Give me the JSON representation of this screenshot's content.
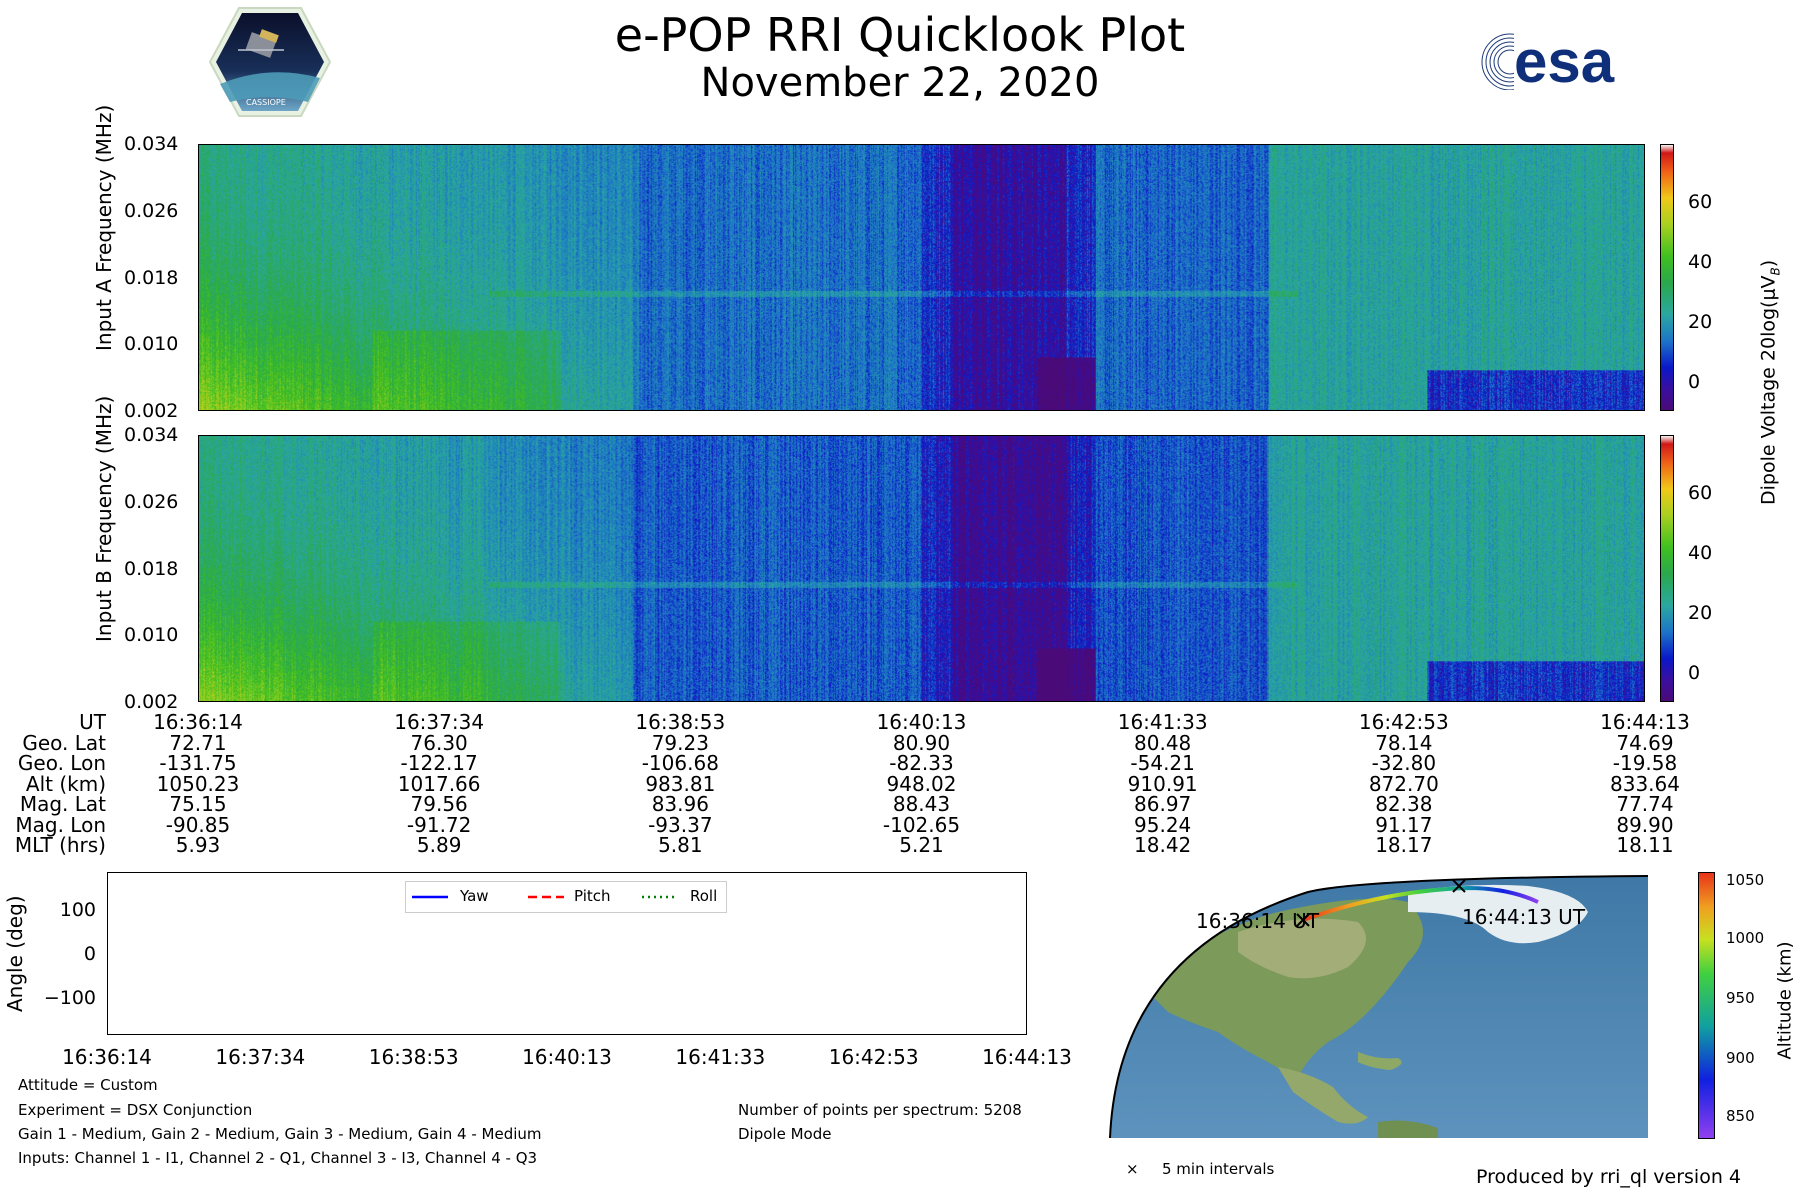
{
  "header": {
    "title": "e-POP RRI Quicklook Plot",
    "date": "November 22, 2020",
    "left_logo": "CASSIOPE",
    "right_logo": "esa"
  },
  "spectrogram": {
    "freq_ticks": [
      "0.034",
      "0.026",
      "0.018",
      "0.010",
      "0.002"
    ],
    "panel_a_ylabel": "Input A Frequency (MHz)",
    "panel_b_ylabel": "Input B Frequency (MHz)",
    "colorbar_ticks": [
      "60",
      "40",
      "20",
      "0"
    ],
    "colorbar_label": "Dipole Voltage 20log(μV",
    "colorbar_label_sub": "B",
    "colorbar_label_end": ")"
  },
  "orbit_table": {
    "labels": [
      "UT",
      "Geo. Lat",
      "Geo. Lon",
      "Alt (km)",
      "Mag. Lat",
      "Mag. Lon",
      "MLT (hrs)"
    ],
    "columns": [
      [
        "16:36:14",
        "72.71",
        "-131.75",
        "1050.23",
        "75.15",
        "-90.85",
        "5.93"
      ],
      [
        "16:37:34",
        "76.30",
        "-122.17",
        "1017.66",
        "79.56",
        "-91.72",
        "5.89"
      ],
      [
        "16:38:53",
        "79.23",
        "-106.68",
        "983.81",
        "83.96",
        "-93.37",
        "5.81"
      ],
      [
        "16:40:13",
        "80.90",
        "-82.33",
        "948.02",
        "88.43",
        "-102.65",
        "5.21"
      ],
      [
        "16:41:33",
        "80.48",
        "-54.21",
        "910.91",
        "86.97",
        "95.24",
        "18.42"
      ],
      [
        "16:42:53",
        "78.14",
        "-32.80",
        "872.70",
        "82.38",
        "91.17",
        "18.17"
      ],
      [
        "16:44:13",
        "74.69",
        "-19.58",
        "833.64",
        "77.74",
        "89.90",
        "18.11"
      ]
    ]
  },
  "attitude_plot": {
    "ylabel": "Angle (deg)",
    "yticks": [
      "100",
      "0",
      "−100"
    ],
    "xticks": [
      "16:36:14",
      "16:37:34",
      "16:38:53",
      "16:40:13",
      "16:41:33",
      "16:42:53",
      "16:44:13"
    ],
    "legend": [
      "Yaw",
      "Pitch",
      "Roll"
    ],
    "colors": {
      "yaw": "#0000ff",
      "pitch": "#ff0000",
      "roll": "#008000"
    }
  },
  "info": {
    "attitude": "Attitude = Custom",
    "experiment": "Experiment = DSX Conjunction",
    "gains": "Gain 1 - Medium, Gain 2 - Medium, Gain 3 - Medium, Gain 4 - Medium",
    "inputs": "Inputs: Channel 1 - I1, Channel 2 - Q1, Channel 3 - I3, Channel 4 - Q3",
    "points": "Number of points per spectrum: 5208",
    "mode": "Dipole Mode"
  },
  "map": {
    "start_label": "16:36:14 UT",
    "end_label": "16:44:13 UT",
    "marker_legend": "5 min intervals",
    "altitude_ticks": [
      "1050",
      "1000",
      "950",
      "900",
      "850"
    ],
    "altitude_label": "Altitude (km)"
  },
  "footer": "Produced by rri_ql version 4",
  "chart_data": {
    "type": "heatmap",
    "title": "e-POP RRI Quicklook Plot",
    "subtitle": "November 22, 2020",
    "x": [
      "16:36:14",
      "16:37:34",
      "16:38:53",
      "16:40:13",
      "16:41:33",
      "16:42:53",
      "16:44:13"
    ],
    "ylim": [
      0.002,
      0.034
    ],
    "colorbar_range": [
      -10,
      78
    ],
    "panels": [
      "Input A Frequency (MHz)",
      "Input B Frequency (MHz)"
    ]
  }
}
